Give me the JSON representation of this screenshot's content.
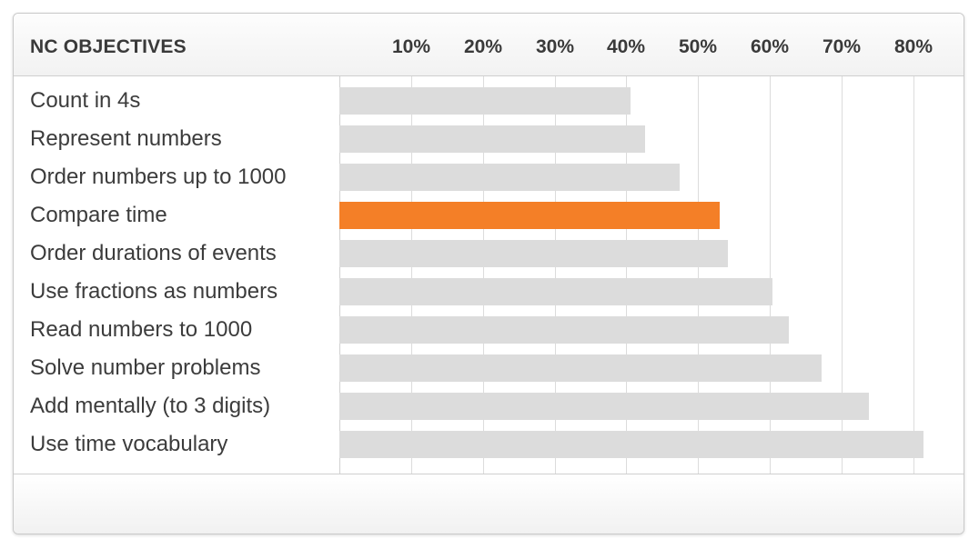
{
  "chart_data": {
    "type": "bar",
    "orientation": "horizontal",
    "title": "NC OBJECTIVES",
    "xticks": [
      "10%",
      "20%",
      "30%",
      "40%",
      "50%",
      "60%",
      "70%",
      "80%"
    ],
    "xtick_values": [
      10,
      20,
      30,
      40,
      50,
      60,
      70,
      80
    ],
    "xlim": [
      0,
      82
    ],
    "grid": true,
    "categories": [
      "Count in 4s",
      "Represent numbers",
      "Order numbers up to 1000",
      "Compare time",
      "Order durations of events",
      "Use fractions as numbers",
      "Read numbers to 1000",
      "Solve number problems",
      "Add mentally (to 3 digits)",
      "Use time vocabulary"
    ],
    "values": [
      40.6,
      42.6,
      47.4,
      53.0,
      54.2,
      60.4,
      62.7,
      67.2,
      73.8,
      81.4
    ],
    "highlight_index": 3,
    "colors": {
      "bar": "#dcdcdc",
      "highlight": "#f47f27"
    }
  }
}
